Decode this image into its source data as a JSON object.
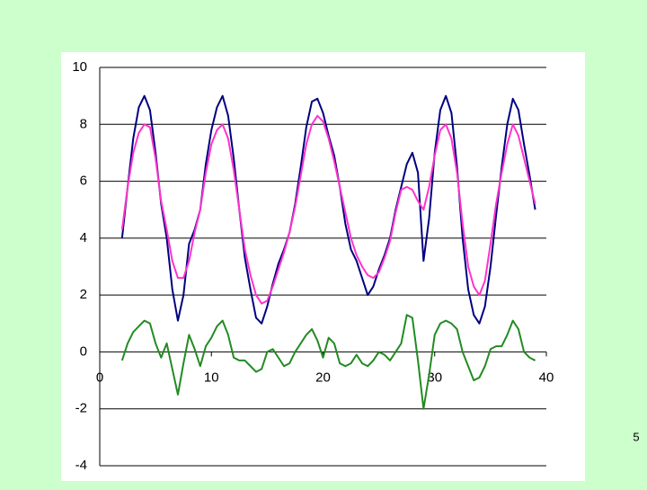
{
  "chart_data": {
    "type": "line",
    "x": [
      2,
      2.5,
      3,
      3.5,
      4,
      4.5,
      5,
      5.5,
      6,
      6.5,
      7,
      7.5,
      8,
      8.5,
      9,
      9.5,
      10,
      10.5,
      11,
      11.5,
      12,
      12.5,
      13,
      13.5,
      14,
      14.5,
      15,
      15.5,
      16,
      16.5,
      17,
      17.5,
      18,
      18.5,
      19,
      19.5,
      20,
      20.5,
      21,
      21.5,
      22,
      22.5,
      23,
      23.5,
      24,
      24.5,
      25,
      25.5,
      26,
      26.5,
      27,
      27.5,
      28,
      28.5,
      29,
      29.5,
      30,
      30.5,
      31,
      31.5,
      32,
      32.5,
      33,
      33.5,
      34,
      34.5,
      35,
      35.5,
      36,
      36.5,
      37,
      37.5,
      38,
      38.5,
      39
    ],
    "series": [
      {
        "color": "#000080",
        "values": [
          4,
          5.8,
          7.5,
          8.6,
          9,
          8.5,
          7,
          5.2,
          4,
          2.2,
          1.1,
          2,
          3.8,
          4.3,
          5,
          6.6,
          7.8,
          8.6,
          9,
          8.3,
          6.8,
          5,
          3.3,
          2.2,
          1.2,
          1,
          1.6,
          2.4,
          3.1,
          3.6,
          4.2,
          5.2,
          6.5,
          7.9,
          8.8,
          8.9,
          8.4,
          7.6,
          6.9,
          5.8,
          4.5,
          3.6,
          3.2,
          2.6,
          2,
          2.3,
          2.9,
          3.4,
          4,
          5,
          5.8,
          6.6,
          7,
          6.3,
          3.2,
          4.7,
          7,
          8.5,
          9,
          8.4,
          6.5,
          4,
          2.2,
          1.3,
          1,
          1.6,
          3,
          4.8,
          6.5,
          8,
          8.9,
          8.5,
          7.3,
          6.2,
          5
        ]
      },
      {
        "color": "#ff33cc",
        "values": [
          4.3,
          5.8,
          7,
          7.7,
          8,
          7.9,
          6.8,
          5.3,
          4.3,
          3.2,
          2.6,
          2.6,
          3.2,
          4.2,
          5,
          6.3,
          7.3,
          7.8,
          8,
          7.5,
          6.4,
          5,
          3.6,
          2.7,
          2,
          1.7,
          1.8,
          2.3,
          2.9,
          3.5,
          4.2,
          5.1,
          6.2,
          7.3,
          8,
          8.3,
          8.1,
          7.5,
          6.7,
          5.8,
          4.9,
          4,
          3.4,
          3,
          2.7,
          2.6,
          2.8,
          3.3,
          3.9,
          4.9,
          5.7,
          5.8,
          5.7,
          5.3,
          5,
          5.8,
          6.9,
          7.8,
          8,
          7.5,
          6.3,
          4.5,
          3,
          2.3,
          2,
          2.5,
          3.8,
          5.2,
          6.3,
          7.3,
          8,
          7.6,
          6.8,
          6,
          5.2
        ]
      },
      {
        "color": "#228b22",
        "values": [
          -0.3,
          0.3,
          0.7,
          0.9,
          1.1,
          1,
          0.3,
          -0.2,
          0.3,
          -0.6,
          -1.5,
          -0.4,
          0.6,
          0.1,
          -0.5,
          0.2,
          0.5,
          0.9,
          1.1,
          0.6,
          -0.2,
          -0.3,
          -0.3,
          -0.5,
          -0.7,
          -0.6,
          0,
          0.1,
          -0.2,
          -0.5,
          -0.4,
          0,
          0.3,
          0.6,
          0.8,
          0.4,
          -0.2,
          0.5,
          0.3,
          -0.4,
          -0.5,
          -0.4,
          -0.1,
          -0.4,
          -0.5,
          -0.3,
          0,
          -0.1,
          -0.3,
          0,
          0.3,
          1.3,
          1.2,
          -0.3,
          -2,
          -0.8,
          0.6,
          1,
          1.1,
          1,
          0.8,
          0,
          -0.5,
          -1,
          -0.9,
          -0.5,
          0.1,
          0.2,
          0.2,
          0.6,
          1.1,
          0.8,
          0,
          -0.2,
          -0.3
        ]
      }
    ],
    "xlim": [
      0,
      40
    ],
    "xticks": [
      0,
      10,
      20,
      30,
      40
    ],
    "ylim": [
      -4,
      10
    ],
    "yticks": [
      -4,
      -2,
      0,
      2,
      4,
      6,
      8,
      10
    ],
    "grid": true
  },
  "slide_number": "5"
}
